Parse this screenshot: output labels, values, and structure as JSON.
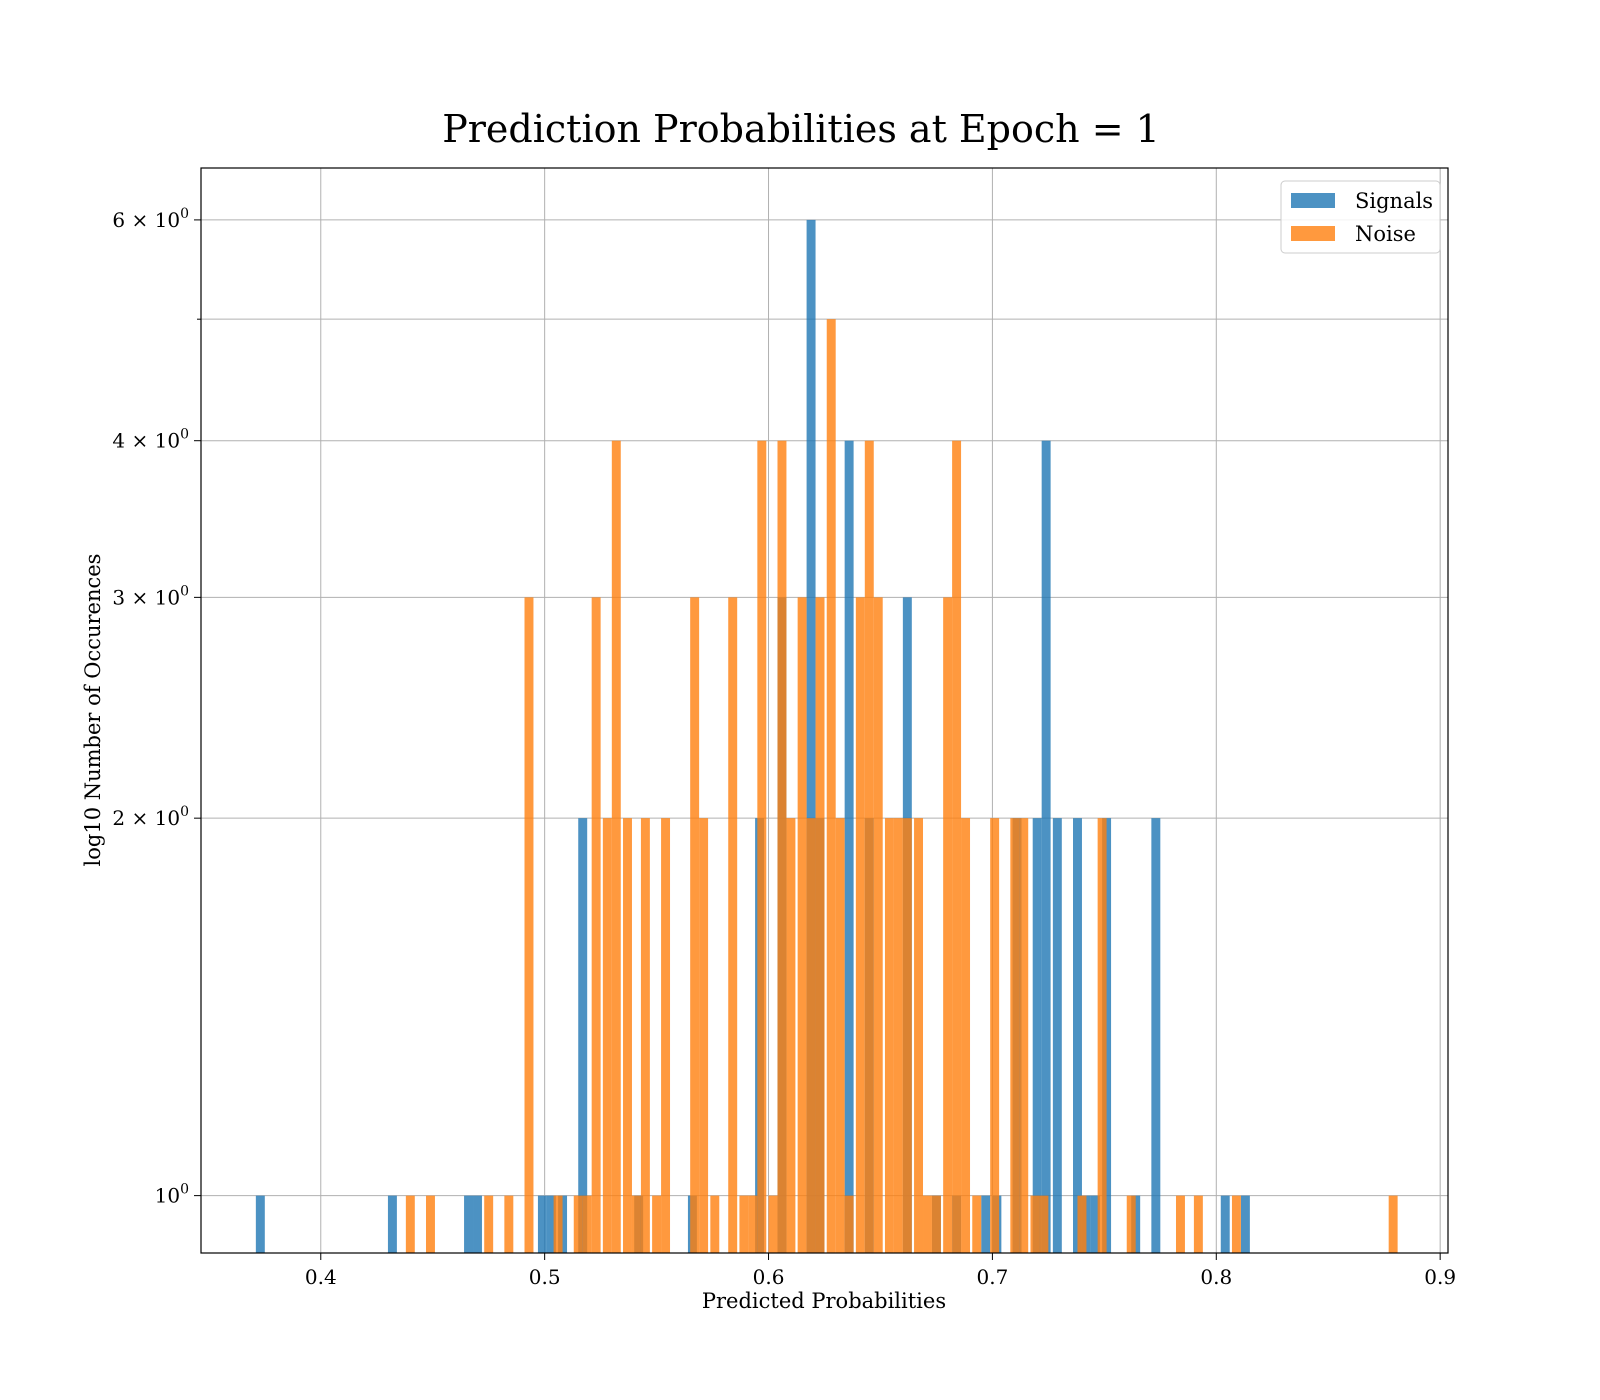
{
  "chart_data": {
    "type": "bar",
    "title": "Prediction Probabilities at Epoch = 1",
    "xlabel": "Predicted Probabilities",
    "ylabel": "log10 Number of Occurences",
    "x_scale": "linear",
    "y_scale": "log",
    "xlim": [
      0.3465,
      0.9035
    ],
    "ylim": [
      0.9,
      6.6
    ],
    "x_ticks": [
      0.4,
      0.5,
      0.6,
      0.7,
      0.8,
      0.9
    ],
    "x_tick_labels": [
      "0.4",
      "0.5",
      "0.6",
      "0.7",
      "0.8",
      "0.9"
    ],
    "y_ticks": [
      1,
      2,
      3,
      4,
      6
    ],
    "y_tick_labels": [
      {
        "base": "10",
        "exp": "0",
        "prefix": ""
      },
      {
        "base": "10",
        "exp": "0",
        "prefix": "2 × "
      },
      {
        "base": "10",
        "exp": "0",
        "prefix": "3 × "
      },
      {
        "base": "10",
        "exp": "0",
        "prefix": "4 × "
      },
      {
        "base": "10",
        "exp": "0",
        "prefix": "6 × "
      }
    ],
    "y_minor_ticks": [
      5
    ],
    "grid": true,
    "legend_position": "top-right",
    "bin_width": 0.004,
    "series": [
      {
        "name": "Signals",
        "color": "#1f77b4",
        "x": [
          0.373,
          0.432,
          0.466,
          0.47,
          0.499,
          0.503,
          0.508,
          0.517,
          0.542,
          0.566,
          0.596,
          0.606,
          0.619,
          0.623,
          0.636,
          0.645,
          0.662,
          0.675,
          0.684,
          0.697,
          0.702,
          0.711,
          0.72,
          0.724,
          0.729,
          0.738,
          0.742,
          0.746,
          0.751,
          0.764,
          0.773,
          0.804,
          0.813
        ],
        "values": [
          1,
          1,
          1,
          1,
          1,
          1,
          1,
          2,
          1,
          1,
          2,
          3,
          6,
          2,
          4,
          2,
          3,
          1,
          1,
          1,
          1,
          2,
          2,
          4,
          2,
          2,
          1,
          1,
          2,
          1,
          2,
          1,
          1
        ]
      },
      {
        "name": "Noise",
        "color": "#ff7f0e",
        "x": [
          0.44,
          0.449,
          0.475,
          0.484,
          0.493,
          0.506,
          0.515,
          0.519,
          0.523,
          0.528,
          0.532,
          0.537,
          0.541,
          0.545,
          0.55,
          0.554,
          0.567,
          0.571,
          0.576,
          0.584,
          0.589,
          0.593,
          0.597,
          0.602,
          0.606,
          0.61,
          0.615,
          0.619,
          0.623,
          0.628,
          0.632,
          0.636,
          0.641,
          0.645,
          0.649,
          0.654,
          0.658,
          0.662,
          0.667,
          0.671,
          0.675,
          0.68,
          0.684,
          0.688,
          0.693,
          0.701,
          0.71,
          0.714,
          0.719,
          0.723,
          0.74,
          0.749,
          0.762,
          0.784,
          0.792,
          0.809,
          0.879
        ],
        "values": [
          1,
          1,
          1,
          1,
          3,
          1,
          1,
          1,
          3,
          2,
          4,
          2,
          1,
          2,
          1,
          2,
          3,
          2,
          1,
          3,
          1,
          1,
          4,
          1,
          4,
          2,
          3,
          2,
          3,
          5,
          2,
          1,
          3,
          4,
          3,
          2,
          2,
          2,
          2,
          1,
          1,
          3,
          4,
          2,
          1,
          2,
          2,
          2,
          1,
          1,
          1,
          2,
          1,
          1,
          1,
          1,
          1
        ]
      }
    ]
  }
}
